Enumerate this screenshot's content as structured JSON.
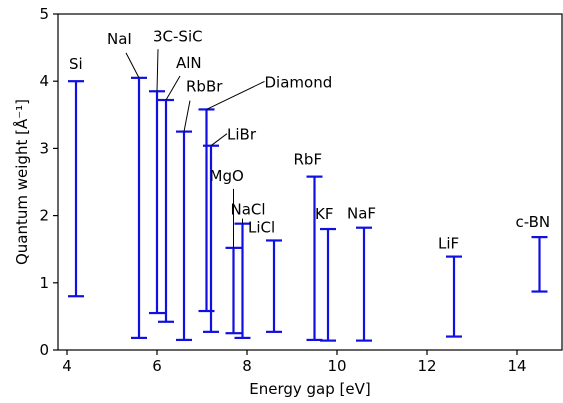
{
  "chart_data": {
    "type": "errorbar",
    "xlabel": "Energy gap [eV]",
    "ylabel": "Quantum weight [Å⁻¹]",
    "xlim": [
      3.8,
      15.0
    ],
    "ylim": [
      0,
      5
    ],
    "xticks": [
      4,
      6,
      8,
      10,
      12,
      14
    ],
    "yticks": [
      0,
      1,
      2,
      3,
      4,
      5
    ],
    "grid": false,
    "points": [
      {
        "label": "Si",
        "x": 4.2,
        "low": 0.8,
        "high": 4.0
      },
      {
        "label": "NaI",
        "x": 5.6,
        "low": 0.18,
        "high": 4.05
      },
      {
        "label": "3C-SiC",
        "x": 6.0,
        "low": 0.55,
        "high": 3.85
      },
      {
        "label": "AlN",
        "x": 6.2,
        "low": 0.42,
        "high": 3.72
      },
      {
        "label": "RbBr",
        "x": 6.6,
        "low": 0.15,
        "high": 3.25
      },
      {
        "label": "Diamond",
        "x": 7.1,
        "low": 0.58,
        "high": 3.58
      },
      {
        "label": "LiBr",
        "x": 7.2,
        "low": 0.27,
        "high": 3.04
      },
      {
        "label": "MgO",
        "x": 7.7,
        "low": 0.25,
        "high": 1.52
      },
      {
        "label": "NaCl",
        "x": 7.9,
        "low": 0.18,
        "high": 1.88
      },
      {
        "label": "LiCl",
        "x": 8.6,
        "low": 0.27,
        "high": 1.63
      },
      {
        "label": "RbF",
        "x": 9.5,
        "low": 0.15,
        "high": 2.58
      },
      {
        "label": "KF",
        "x": 9.8,
        "low": 0.14,
        "high": 1.8
      },
      {
        "label": "NaF",
        "x": 10.6,
        "low": 0.14,
        "high": 1.82
      },
      {
        "label": "LiF",
        "x": 12.6,
        "low": 0.2,
        "high": 1.39
      },
      {
        "label": "c-BN",
        "x": 14.5,
        "low": 0.87,
        "high": 1.68
      }
    ]
  }
}
